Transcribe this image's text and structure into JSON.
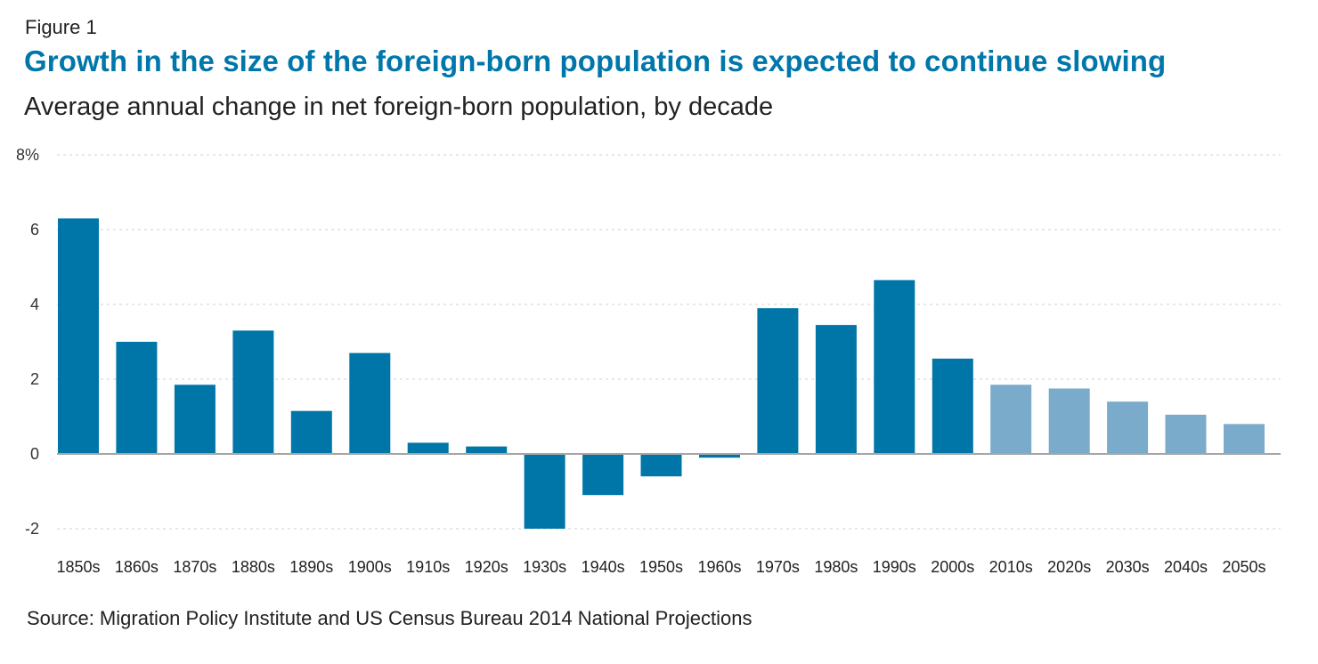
{
  "figure_label": "Figure 1",
  "source": "Source: Migration Policy Institute and US Census Bureau 2014 National Projections",
  "colors": {
    "title": "#0077aa",
    "historical": "#0075a8",
    "projected": "#7aabcb",
    "grid": "#d9d9d9",
    "zero_line": "#a6a6a6"
  },
  "chart_data": {
    "type": "bar",
    "title": "Growth in the size of the foreign-born population is expected to continue slowing",
    "subtitle": "Average annual change in net foreign-born population, by decade",
    "xlabel": "",
    "ylabel": "",
    "ylim": [
      -2,
      8
    ],
    "yticks": [
      -2,
      0,
      2,
      4,
      6,
      8
    ],
    "ytick_labels": [
      "-2",
      "0",
      "2",
      "4",
      "6",
      "8%"
    ],
    "grid": true,
    "categories": [
      "1850s",
      "1860s",
      "1870s",
      "1880s",
      "1890s",
      "1900s",
      "1910s",
      "1920s",
      "1930s",
      "1940s",
      "1950s",
      "1960s",
      "1970s",
      "1980s",
      "1990s",
      "2000s",
      "2010s",
      "2020s",
      "2030s",
      "2040s",
      "2050s"
    ],
    "values": [
      6.3,
      3.0,
      1.85,
      3.3,
      1.15,
      2.7,
      0.3,
      0.2,
      -2.0,
      -1.1,
      -0.6,
      -0.1,
      3.9,
      3.45,
      4.65,
      2.55,
      1.85,
      1.75,
      1.4,
      1.05,
      0.8
    ],
    "series_type": [
      "historical",
      "historical",
      "historical",
      "historical",
      "historical",
      "historical",
      "historical",
      "historical",
      "historical",
      "historical",
      "historical",
      "historical",
      "historical",
      "historical",
      "historical",
      "historical",
      "projected",
      "projected",
      "projected",
      "projected",
      "projected"
    ]
  }
}
